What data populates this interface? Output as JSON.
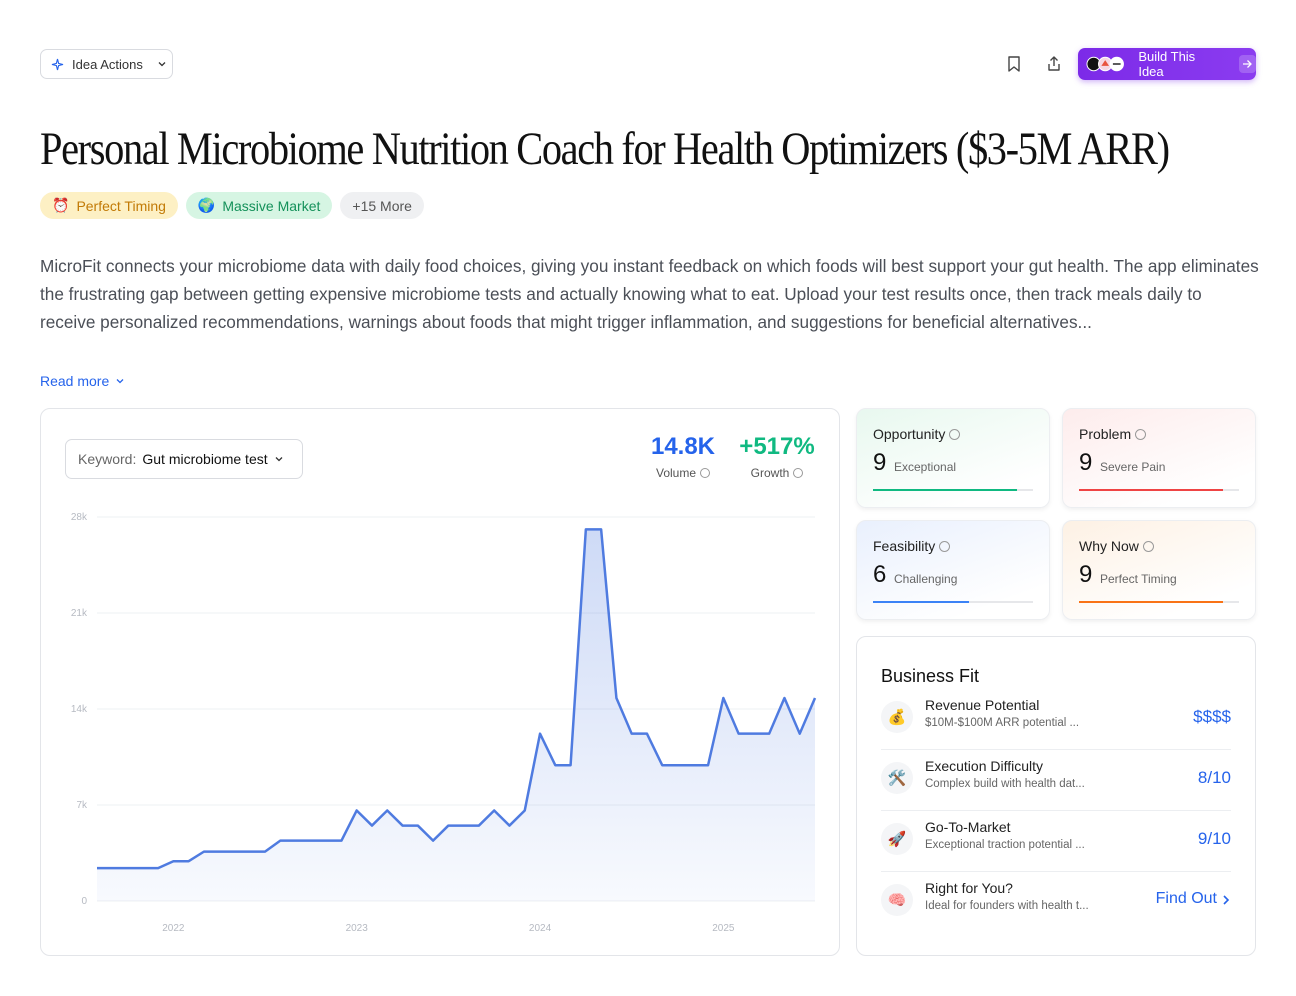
{
  "toolbar": {
    "actions": "Idea Actions",
    "build": "Build This Idea"
  },
  "title": "Personal Microbiome Nutrition Coach for Health Optimizers ($3-5M ARR)",
  "tags": [
    {
      "icon": "⏰",
      "text": "Perfect Timing"
    },
    {
      "icon": "🌍",
      "text": "Massive Market"
    },
    {
      "icon": "",
      "text": "+15 More"
    }
  ],
  "description": "MicroFit connects your microbiome data with daily food choices, giving you instant feedback on which foods will best support your gut health. The app eliminates the frustrating gap between getting expensive microbiome tests and actually knowing what to eat. Upload your test results once, then track meals daily to receive personalized recommendations, warnings about foods that might trigger inflammation, and suggestions for beneficial alternatives...",
  "read_more": "Read more",
  "keyword": {
    "label": "Keyword:",
    "value": "Gut microbiome test"
  },
  "stats": [
    {
      "value": "14.8K",
      "label": "Volume",
      "color": "#2563eb"
    },
    {
      "value": "+517%",
      "label": "Growth",
      "color": "#10b981"
    }
  ],
  "chart_data": {
    "type": "line",
    "categories": [
      null,
      null,
      null,
      null,
      null,
      "2022",
      null,
      null,
      null,
      null,
      null,
      null,
      null,
      null,
      null,
      null,
      null,
      "2023",
      null,
      null,
      null,
      null,
      null,
      null,
      null,
      null,
      null,
      null,
      null,
      "2024",
      null,
      null,
      null,
      null,
      null,
      null,
      null,
      null,
      null,
      null,
      null,
      "2025",
      null,
      null,
      null,
      null,
      null,
      null
    ],
    "series": [
      {
        "name": "Gut microbiome test",
        "color": "#4f7be0",
        "values": [
          2400,
          2400,
          2400,
          2400,
          2400,
          2900,
          2900,
          3600,
          3600,
          3600,
          3600,
          3600,
          4400,
          4400,
          4400,
          4400,
          4400,
          6600,
          5500,
          6600,
          5500,
          5500,
          4400,
          5500,
          5500,
          5500,
          6600,
          5500,
          6600,
          12200,
          9900,
          9900,
          27100,
          27100,
          14800,
          12200,
          12200,
          9900,
          9900,
          9900,
          9900,
          14800,
          12200,
          12200,
          12200,
          14800,
          12200,
          14800
        ]
      }
    ],
    "ylim": [
      0,
      28000
    ],
    "yticks": [
      0,
      {
        "value": 7000,
        "label": "7k"
      },
      {
        "value": 14000,
        "label": "14k"
      },
      {
        "value": 21000,
        "label": "21k"
      },
      {
        "value": 28000,
        "label": "28k"
      }
    ],
    "grid": true
  },
  "scores": [
    {
      "title": "Opportunity",
      "score": 9,
      "label": "Exceptional",
      "color": "#10b981",
      "bg": "#e8f8ef"
    },
    {
      "title": "Problem",
      "score": 9,
      "label": "Severe Pain",
      "color": "#ef4444",
      "bg": "#fdecec"
    },
    {
      "title": "Feasibility",
      "score": 6,
      "label": "Challenging",
      "color": "#3b82f6",
      "bg": "#e9f0fd"
    },
    {
      "title": "Why Now",
      "score": 9,
      "label": "Perfect Timing",
      "color": "#f97316",
      "bg": "#fdf1e4"
    }
  ],
  "score_max": 10,
  "business_fit": {
    "title": "Business Fit",
    "rows": [
      {
        "icon": "💰",
        "title": "Revenue Potential",
        "subtitle": "$10M-$100M ARR potential ...",
        "value": "$$$$"
      },
      {
        "icon": "🛠️",
        "title": "Execution Difficulty",
        "subtitle": "Complex build with health dat...",
        "value": "8/10"
      },
      {
        "icon": "🚀",
        "title": "Go-To-Market",
        "subtitle": "Exceptional traction potential ...",
        "value": "9/10"
      },
      {
        "icon": "🧠",
        "title": "Right for You?",
        "subtitle": "Ideal for founders with health t...",
        "value": "Find Out"
      }
    ]
  }
}
